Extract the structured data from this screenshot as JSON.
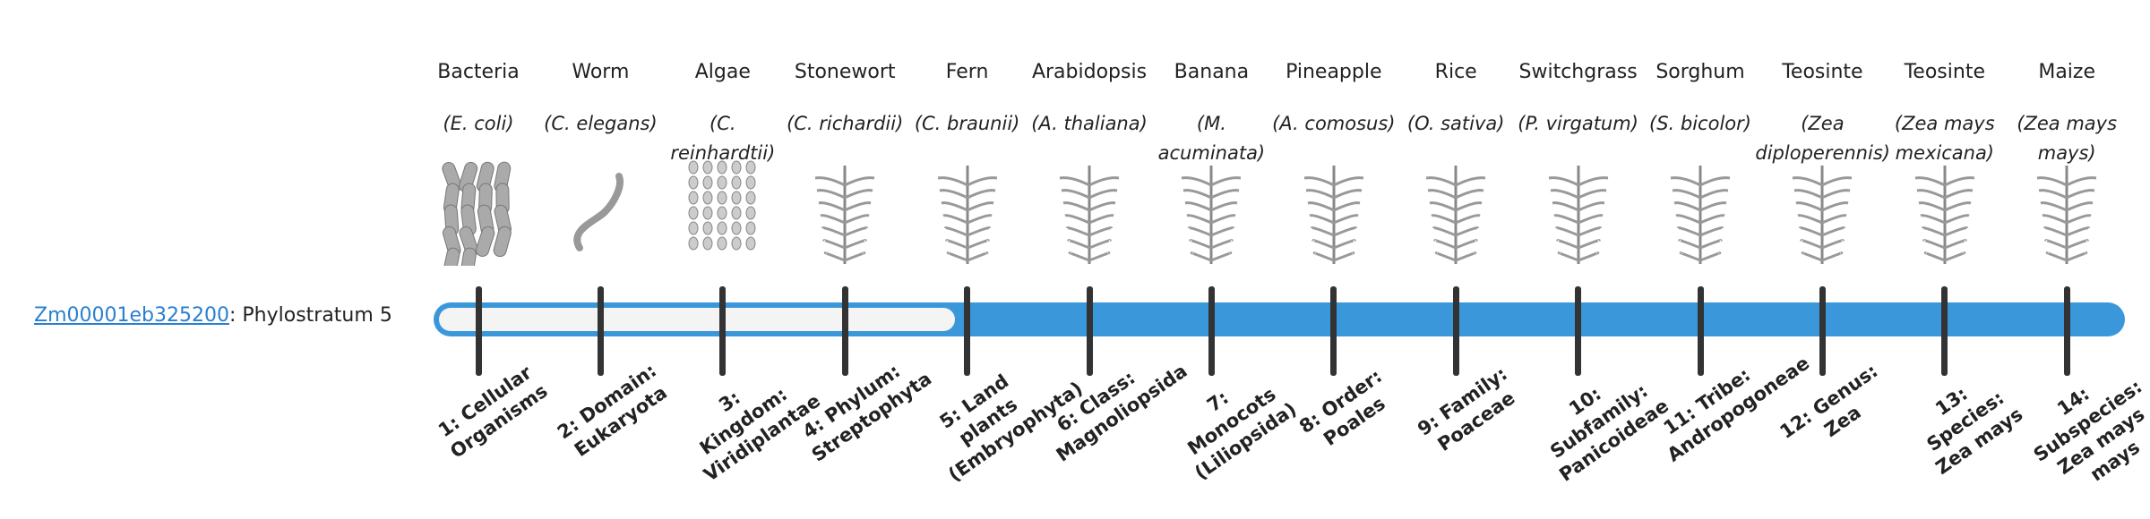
{
  "gene": {
    "id": "Zm00001eb325200",
    "label": "Phylostratum",
    "stratum": 5
  },
  "organisms": [
    {
      "name": "Bacteria",
      "latin": "(E. coli)"
    },
    {
      "name": "Worm",
      "latin": "(C. elegans)"
    },
    {
      "name": "Algae",
      "latin": "(C. reinhardtii)"
    },
    {
      "name": "Stonewort",
      "latin": "(C. richardii)"
    },
    {
      "name": "Fern",
      "latin": "(C. braunii)"
    },
    {
      "name": "Arabidopsis",
      "latin": "(A. thaliana)"
    },
    {
      "name": "Banana",
      "latin": "(M. acuminata)"
    },
    {
      "name": "Pineapple",
      "latin": "(A. comosus)"
    },
    {
      "name": "Rice",
      "latin": "(O. sativa)"
    },
    {
      "name": "Switchgrass",
      "latin": "(P. virgatum)"
    },
    {
      "name": "Sorghum",
      "latin": "(S. bicolor)"
    },
    {
      "name": "Teosinte",
      "latin": "(Zea diploperennis)"
    },
    {
      "name": "Teosinte",
      "latin": "(Zea mays mexicana)"
    },
    {
      "name": "Maize",
      "latin": "(Zea mays mays)"
    }
  ],
  "strata": [
    "1: Cellular Organisms",
    "2: Domain: Eukaryota",
    "3: Kingdom: Viridiplantae",
    "4: Phylum: Streptophyta",
    "5: Land plants (Embryophyta)",
    "6: Class: Magnoliopsida",
    "7: Monocots (Liliopsida)",
    "8: Order: Poales",
    "9: Family: Poaceae",
    "10: Subfamily: Panicoideae",
    "11: Tribe: Andropogoneae",
    "12: Genus: Zea",
    "13: Species: Zea mays",
    "14: Subspecies: Zea mays mays"
  ]
}
